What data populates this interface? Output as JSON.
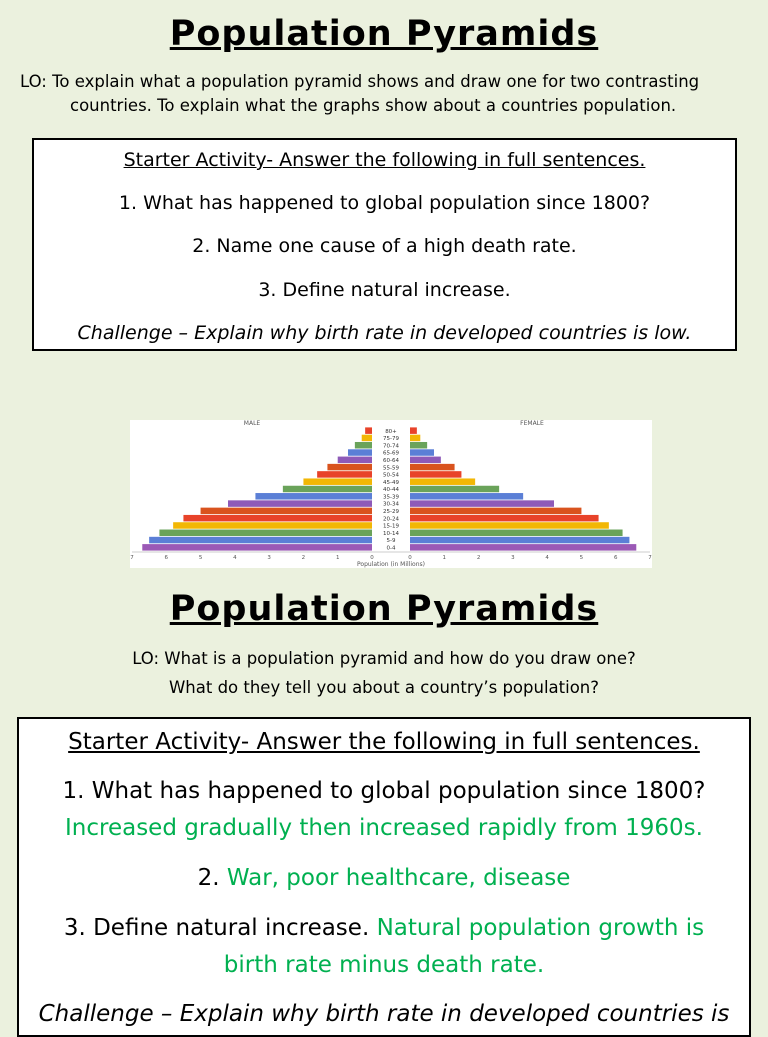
{
  "slide1": {
    "title": "Population Pyramids",
    "lo_line1": "LO: To explain what a population pyramid shows and draw one for two contrasting",
    "lo_line2": "countries.  To explain what the graphs show about a countries population.",
    "starter": {
      "heading": "Starter Activity- Answer the following in full sentences.",
      "q1": "1. What has happened to global population since 1800?",
      "q2": "2. Name one cause of a high death rate.",
      "q3": "3. Define natural increase.",
      "challenge": "Challenge – Explain why birth rate in developed countries is low."
    }
  },
  "chart_data": {
    "type": "bar",
    "orientation": "horizontal-mirrored",
    "categories": [
      "0-4",
      "5-9",
      "10-14",
      "15-19",
      "20-24",
      "25-29",
      "30-34",
      "35-39",
      "40-44",
      "45-49",
      "50-54",
      "55-59",
      "60-64",
      "65-69",
      "70-74",
      "75-79",
      "80+"
    ],
    "series": [
      {
        "name": "MALE",
        "values": [
          6.7,
          6.5,
          6.2,
          5.8,
          5.5,
          5.0,
          4.2,
          3.4,
          2.6,
          2.0,
          1.6,
          1.3,
          1.0,
          0.7,
          0.5,
          0.3,
          0.2
        ]
      },
      {
        "name": "FEMALE",
        "values": [
          6.6,
          6.4,
          6.2,
          5.8,
          5.5,
          5.0,
          4.2,
          3.3,
          2.6,
          1.9,
          1.5,
          1.3,
          0.9,
          0.7,
          0.5,
          0.3,
          0.2
        ]
      }
    ],
    "band_colors": [
      "#9b59b6",
      "#5b7fd6",
      "#6aa35a",
      "#f2b705",
      "#e8432a",
      "#d9531e",
      "#8e5ab8",
      "#5b7fd6",
      "#6aa35a",
      "#f2b705",
      "#e8432a",
      "#d9531e",
      "#8e5ab8",
      "#5b7fd6",
      "#6aa35a",
      "#f2b705",
      "#e8432a"
    ],
    "xlabel": "Population (in Millions)",
    "xticks": [
      "7",
      "6",
      "5",
      "4",
      "3",
      "2",
      "1",
      "0",
      "0",
      "1",
      "2",
      "3",
      "4",
      "5",
      "6",
      "7"
    ],
    "xlim": [
      0,
      7
    ],
    "left_label": "MALE",
    "right_label": "FEMALE"
  },
  "slide2": {
    "title": "Population Pyramids",
    "lo_line1": "LO: What is a population pyramid and how do you draw one?",
    "lo_line2": "What do they tell you about a country’s population?",
    "starter": {
      "heading": "Starter Activity- Answer the following in full sentences.",
      "q1": "1. What has happened to global population since 1800?",
      "a1": "Increased gradually then increased rapidly from 1960s.",
      "q2_num": "2.",
      "a2": "War, poor healthcare, disease",
      "q3": "3. Define natural increase.",
      "a3_part1": "Natural population growth is",
      "a3_part2": "birth rate minus death rate.",
      "challenge": "Challenge – Explain why birth rate in developed countries is"
    }
  },
  "colors": {
    "answer": "#00b050",
    "background": "#ebf1de"
  }
}
